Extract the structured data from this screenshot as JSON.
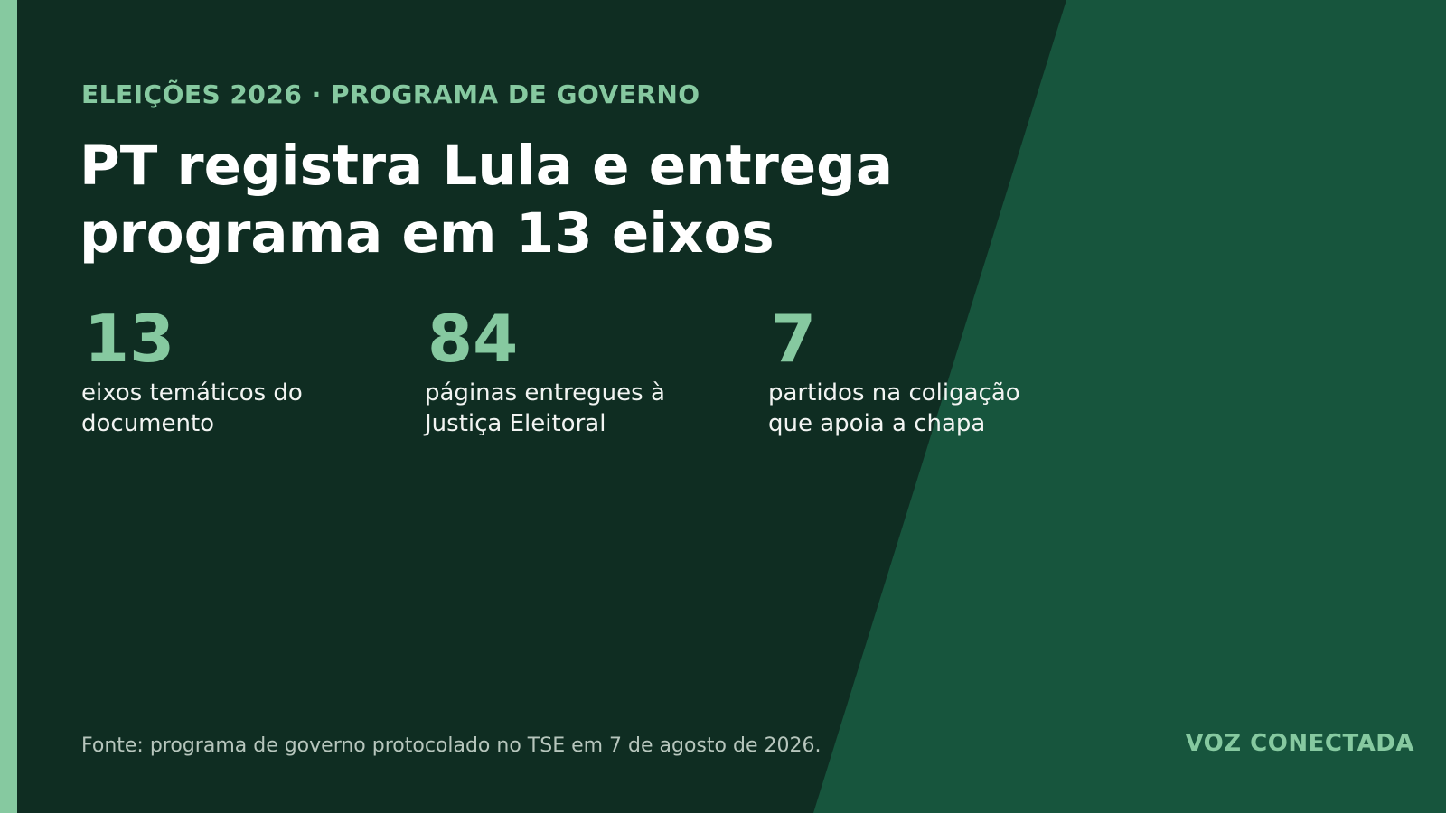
{
  "header": {
    "kicker": "ELEIÇÕES 2026 · PROGRAMA DE GOVERNO",
    "title": "PT registra Lula e entrega programa em 13 eixos"
  },
  "stats": [
    {
      "value": "13",
      "label": "eixos temáticos do documento"
    },
    {
      "value": "84",
      "label": "páginas entregues à Justiça Eleitoral"
    },
    {
      "value": "7",
      "label": "partidos na coligação que apoia a chapa"
    }
  ],
  "footer": {
    "source": "Fonte: programa de governo protocolado no TSE em 7 de agosto de 2026.",
    "brand": "VOZ CONECTADA"
  },
  "colors": {
    "background": "#0f2d22",
    "panel": "#17553d",
    "accent": "#86c9a0",
    "text": "#ffffff"
  }
}
